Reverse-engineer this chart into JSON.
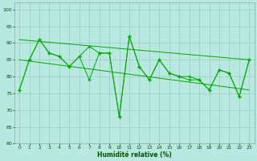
{
  "xlabel": "Humidité relative (%)",
  "xlim": [
    -0.5,
    23.5
  ],
  "ylim": [
    60,
    102
  ],
  "yticks": [
    60,
    65,
    70,
    75,
    80,
    85,
    90,
    95,
    100
  ],
  "xticks": [
    0,
    1,
    2,
    3,
    4,
    5,
    6,
    7,
    8,
    9,
    10,
    11,
    12,
    13,
    14,
    15,
    16,
    17,
    18,
    19,
    20,
    21,
    22,
    23
  ],
  "bg_color": "#b8e8e0",
  "grid_color": "#99ccbb",
  "line_color": "#00aa00",
  "s1": [
    76,
    85,
    91,
    87,
    86,
    83,
    86,
    89,
    87,
    87,
    68,
    92,
    83,
    79,
    85,
    81,
    80,
    80,
    79,
    76,
    82,
    81,
    74,
    85
  ],
  "s2": [
    76,
    85,
    91,
    87,
    86,
    83,
    86,
    79,
    87,
    87,
    68,
    92,
    83,
    79,
    85,
    81,
    80,
    79,
    79,
    76,
    82,
    81,
    74,
    85
  ],
  "trend1_y": [
    91,
    85
  ],
  "trend2_y": [
    85,
    76
  ]
}
